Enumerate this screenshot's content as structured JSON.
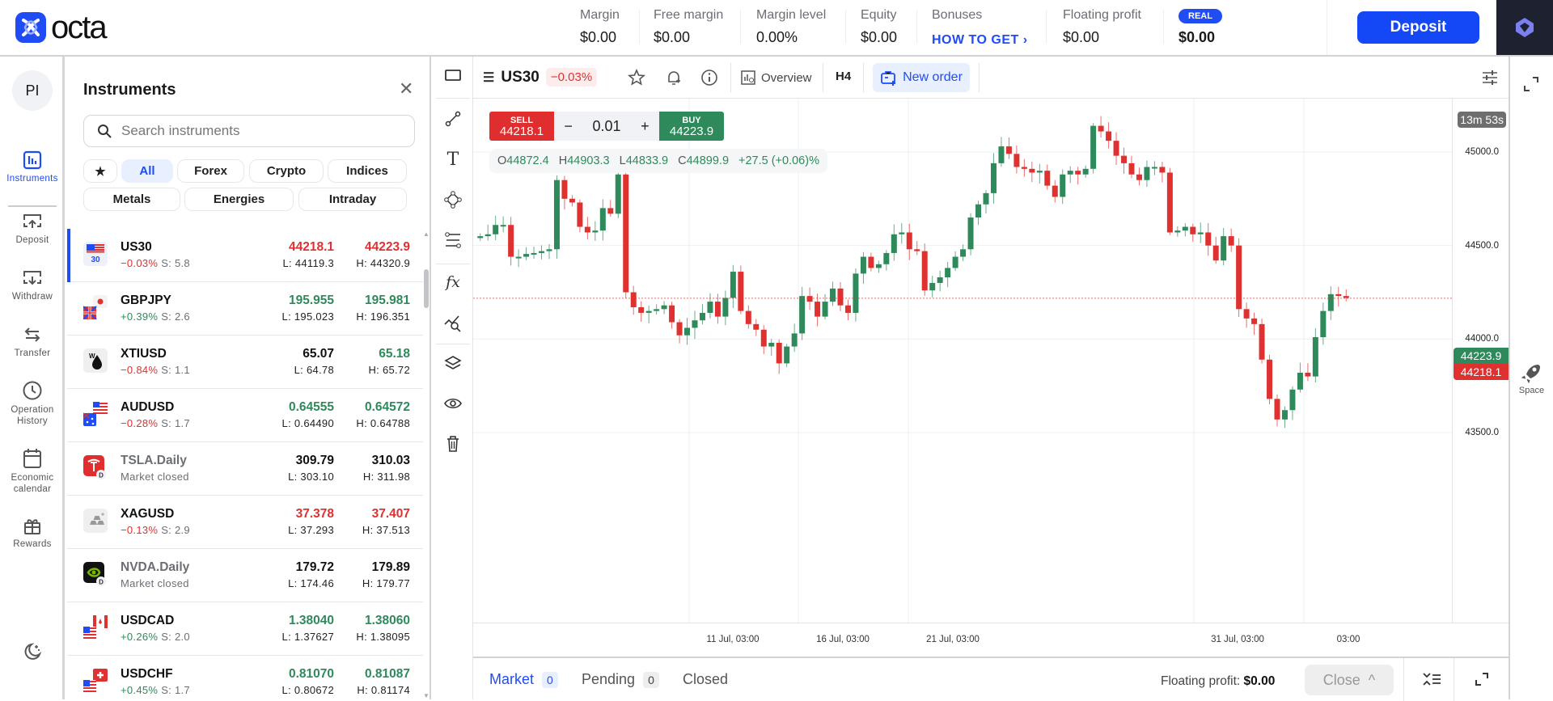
{
  "header": {
    "brand": "octa",
    "stats": [
      {
        "label": "Margin",
        "value": "$0.00"
      },
      {
        "label": "Free margin",
        "value": "$0.00"
      },
      {
        "label": "Margin level",
        "value": "0.00%"
      },
      {
        "label": "Equity",
        "value": "$0.00"
      },
      {
        "label": "Bonuses",
        "value": "HOW TO GET"
      },
      {
        "label": "Floating profit",
        "value": "$0.00"
      }
    ],
    "account_badge": "REAL",
    "balance": "$0.00",
    "deposit_label": "Deposit",
    "colors": {
      "brand": "#1f4cf5",
      "dark": "#1e2230"
    }
  },
  "leftnav": {
    "avatar": "PI",
    "items": [
      {
        "label": "Instruments",
        "icon": "chart-bars-icon",
        "active": true
      },
      {
        "label": "Deposit",
        "icon": "deposit-icon"
      },
      {
        "label": "Withdraw",
        "icon": "withdraw-icon"
      },
      {
        "label": "Transfer",
        "icon": "transfer-icon"
      },
      {
        "label": "Operation History",
        "icon": "clock-icon"
      },
      {
        "label": "Economic calendar",
        "icon": "calendar-icon"
      },
      {
        "label": "Rewards",
        "icon": "gift-icon"
      }
    ],
    "theme_toggle": "moon-icon"
  },
  "instruments": {
    "title": "Instruments",
    "search_placeholder": "Search instruments",
    "filters": [
      "All",
      "Forex",
      "Crypto",
      "Indices",
      "Metals",
      "Energies",
      "Intraday"
    ],
    "active_filter": "All",
    "rows": [
      {
        "symbol": "US30",
        "change": "−0.03%",
        "spread": "S: 5.8",
        "bid": "44218.1",
        "ask": "44223.9",
        "low": "L: 44119.3",
        "high": "H: 44320.9",
        "dir": "neg",
        "bid_color": "neg",
        "ask_color": "neg",
        "selected": true
      },
      {
        "symbol": "GBPJPY",
        "change": "+0.39%",
        "spread": "S: 2.6",
        "bid": "195.955",
        "ask": "195.981",
        "low": "L: 195.023",
        "high": "H: 196.351",
        "dir": "pos",
        "bid_color": "pos",
        "ask_color": "pos"
      },
      {
        "symbol": "XTIUSD",
        "change": "−0.84%",
        "spread": "S: 1.1",
        "bid": "65.07",
        "ask": "65.18",
        "low": "L: 64.78",
        "high": "H: 65.72",
        "dir": "neg",
        "bid_color": "neu",
        "ask_color": "pos"
      },
      {
        "symbol": "AUDUSD",
        "change": "−0.28%",
        "spread": "S: 1.7",
        "bid": "0.64555",
        "ask": "0.64572",
        "low": "L: 0.64490",
        "high": "H: 0.64788",
        "dir": "neg",
        "bid_color": "pos",
        "ask_color": "pos"
      },
      {
        "symbol": "TSLA.Daily",
        "change": "Market closed",
        "spread": "",
        "bid": "309.79",
        "ask": "310.03",
        "low": "L: 303.10",
        "high": "H: 311.98",
        "dir": "closed",
        "bid_color": "neu",
        "ask_color": "neu"
      },
      {
        "symbol": "XAGUSD",
        "change": "−0.13%",
        "spread": "S: 2.9",
        "bid": "37.378",
        "ask": "37.407",
        "low": "L: 37.293",
        "high": "H: 37.513",
        "dir": "neg",
        "bid_color": "neg",
        "ask_color": "neg"
      },
      {
        "symbol": "NVDA.Daily",
        "change": "Market closed",
        "spread": "",
        "bid": "179.72",
        "ask": "179.89",
        "low": "L: 174.46",
        "high": "H: 179.77",
        "dir": "closed",
        "bid_color": "neu",
        "ask_color": "neu"
      },
      {
        "symbol": "USDCAD",
        "change": "+0.26%",
        "spread": "S: 2.0",
        "bid": "1.38040",
        "ask": "1.38060",
        "low": "L: 1.37627",
        "high": "H: 1.38095",
        "dir": "pos",
        "bid_color": "pos",
        "ask_color": "pos"
      },
      {
        "symbol": "USDCHF",
        "change": "+0.45%",
        "spread": "S: 1.7",
        "bid": "0.81070",
        "ask": "0.81087",
        "low": "L: 0.80672",
        "high": "H: 0.81174",
        "dir": "pos",
        "bid_color": "pos",
        "ask_color": "pos"
      }
    ]
  },
  "chart": {
    "symbol": "US30",
    "change": "−0.03%",
    "overview_label": "Overview",
    "timeframe": "H4",
    "new_order_label": "New order",
    "sell_label": "SELL",
    "sell_price": "44218.1",
    "buy_label": "BUY",
    "buy_price": "44223.9",
    "lot": "0.01",
    "minus": "−",
    "plus": "+",
    "ohlc": {
      "o_label": "O",
      "o": "44872.4",
      "h_label": "H",
      "h": "44903.3",
      "l_label": "L",
      "l": "44833.9",
      "c_label": "C",
      "c": "44899.9",
      "change": "+27.5 (+0.06)%"
    },
    "timer": "13m 53s",
    "ask_tag": "44223.9",
    "bid_tag": "44218.1",
    "space_label": "Space",
    "colors": {
      "up": "#2f8a5b",
      "down": "#e03131"
    }
  },
  "chart_data": {
    "type": "candlestick",
    "title": "US30 H4",
    "ylim": [
      43300,
      45300
    ],
    "y_ticks": [
      "45000.0",
      "44500.0",
      "44000.0",
      "43500.0"
    ],
    "x_ticks": [
      "11 Jul, 03:00",
      "16 Jul, 03:00",
      "21 Jul, 03:00",
      "31 Jul, 03:00",
      "03:00"
    ],
    "current_bid": 44218.1,
    "current_ask": 44223.9,
    "closes_approx": [
      44550,
      44560,
      44610,
      44610,
      44440,
      44440,
      44455,
      44460,
      44470,
      44480,
      44850,
      44750,
      44730,
      44600,
      44570,
      44580,
      44700,
      44670,
      44880,
      44250,
      44170,
      44140,
      44150,
      44160,
      44180,
      44090,
      44020,
      44060,
      44100,
      44140,
      44200,
      44120,
      44220,
      44360,
      44150,
      44080,
      44050,
      43960,
      43980,
      43870,
      43960,
      44030,
      44230,
      44200,
      44120,
      44200,
      44270,
      44180,
      44140,
      44350,
      44440,
      44380,
      44400,
      44460,
      44560,
      44570,
      44480,
      44470,
      44260,
      44300,
      44330,
      44380,
      44440,
      44480,
      44650,
      44720,
      44780,
      44940,
      45030,
      44990,
      44920,
      44910,
      44890,
      44900,
      44820,
      44760,
      44880,
      44900,
      44880,
      44910,
      45140,
      45110,
      45060,
      44980,
      44940,
      44880,
      44850,
      44920,
      44920,
      44890,
      44570,
      44580,
      44600,
      44560,
      44570,
      44500,
      44420,
      44550,
      44500,
      44160,
      44110,
      44080,
      43890,
      43680,
      43570,
      43620,
      43730,
      43820,
      43800,
      44010,
      44150,
      44240,
      44230,
      44220
    ],
    "grid": true
  },
  "bottom": {
    "tabs": [
      {
        "label": "Market",
        "count": "0",
        "active": true
      },
      {
        "label": "Pending",
        "count": "0"
      },
      {
        "label": "Closed"
      }
    ],
    "floating_label": "Floating profit:",
    "floating_value": "$0.00",
    "close_label": "Close"
  }
}
